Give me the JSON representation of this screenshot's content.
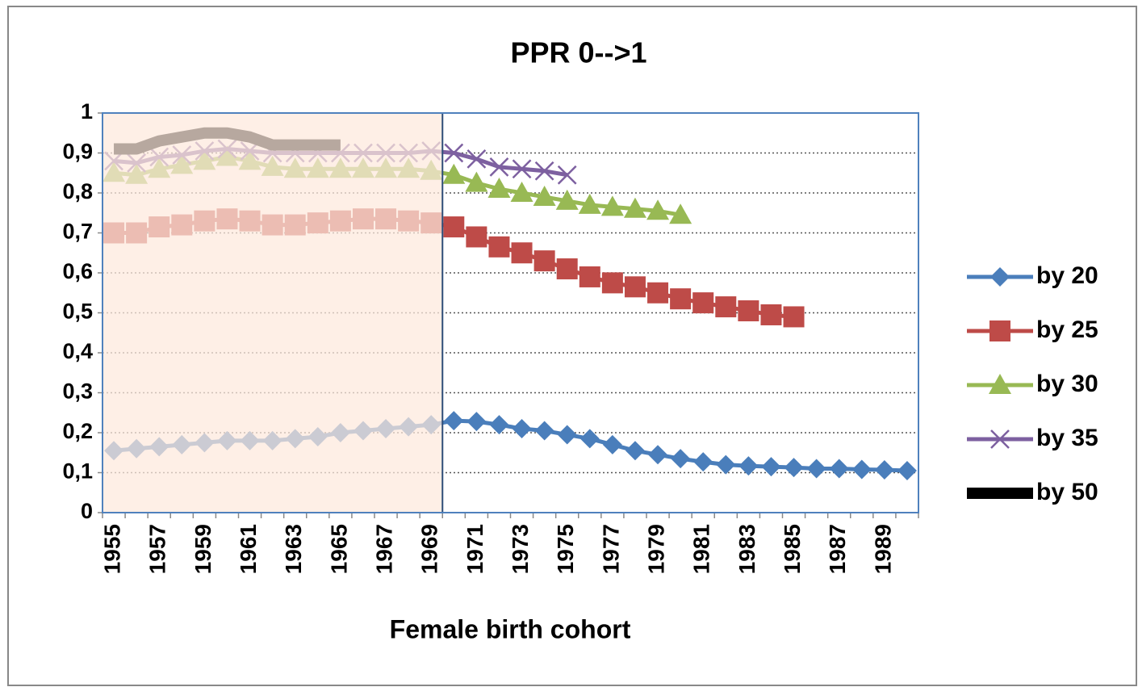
{
  "chart_data": {
    "type": "line",
    "title": "PPR 0-->1",
    "x_label": "Female birth cohort",
    "categories": [
      "1955",
      null,
      "1957",
      null,
      "1959",
      null,
      "1961",
      null,
      "1963",
      null,
      "1965",
      null,
      "1967",
      null,
      "1969",
      null,
      "1971",
      null,
      "1973",
      null,
      "1975",
      null,
      "1977",
      null,
      "1979",
      null,
      "1981",
      null,
      "1983",
      null,
      "1985",
      null,
      "1987",
      null,
      "1989",
      null
    ],
    "ylim": [
      0,
      1
    ],
    "yticks": [
      0,
      {
        "value": 0.1,
        "label": "0,1"
      },
      {
        "value": 0.2,
        "label": "0,2"
      },
      {
        "value": 0.3,
        "label": "0,3"
      },
      {
        "value": 0.4,
        "label": "0,4"
      },
      {
        "value": 0.5,
        "label": "0,5"
      },
      {
        "value": 0.6,
        "label": "0,6"
      },
      {
        "value": 0.7,
        "label": "0,7"
      },
      {
        "value": 0.8,
        "label": "0,8"
      },
      {
        "value": 0.9,
        "label": "0,9"
      },
      1
    ],
    "grid": true,
    "legend": "right",
    "series": [
      {
        "name": "by 20",
        "color": "#4a7ebb",
        "marker": "diamond",
        "values": [
          0.155,
          0.16,
          0.165,
          0.17,
          0.175,
          0.18,
          0.18,
          0.18,
          0.185,
          0.19,
          0.2,
          0.205,
          0.21,
          0.215,
          0.22,
          0.23,
          0.228,
          0.22,
          0.21,
          0.205,
          0.195,
          0.185,
          0.17,
          0.155,
          0.145,
          0.135,
          0.127,
          0.12,
          0.117,
          0.115,
          0.113,
          0.11,
          0.11,
          0.108,
          0.107,
          0.105
        ]
      },
      {
        "name": "by 25",
        "color": "#be4b48",
        "marker": "square",
        "values": [
          0.7,
          0.7,
          0.715,
          0.72,
          0.73,
          0.735,
          0.73,
          0.72,
          0.72,
          0.725,
          0.73,
          0.735,
          0.735,
          0.73,
          0.725,
          0.715,
          0.69,
          0.665,
          0.65,
          0.63,
          0.61,
          0.59,
          0.575,
          0.565,
          0.55,
          0.535,
          0.525,
          0.515,
          0.505,
          0.495,
          0.49,
          null,
          null,
          null,
          null,
          null
        ]
      },
      {
        "name": "by 30",
        "color": "#98b954",
        "marker": "triangle",
        "values": [
          0.85,
          0.845,
          0.86,
          0.87,
          0.88,
          0.89,
          0.88,
          0.865,
          0.86,
          0.86,
          0.86,
          0.86,
          0.86,
          0.86,
          0.855,
          0.845,
          0.825,
          0.81,
          0.8,
          0.79,
          0.78,
          0.77,
          0.765,
          0.76,
          0.755,
          0.745,
          null,
          null,
          null,
          null,
          null,
          null,
          null,
          null,
          null,
          null
        ]
      },
      {
        "name": "by 35",
        "color": "#7d60a0",
        "marker": "x",
        "values": [
          0.88,
          0.875,
          0.89,
          0.895,
          0.905,
          0.91,
          0.905,
          0.9,
          0.9,
          0.9,
          0.9,
          0.9,
          0.9,
          0.9,
          0.905,
          0.9,
          0.885,
          0.865,
          0.86,
          0.855,
          0.845,
          null,
          null,
          null,
          null,
          null,
          null,
          null,
          null,
          null,
          null,
          null,
          null,
          null,
          null,
          null
        ]
      },
      {
        "name": "by 50",
        "color": "#000000",
        "marker": "none",
        "values": [
          0.91,
          0.91,
          0.93,
          0.94,
          0.95,
          0.95,
          0.94,
          0.92,
          0.92,
          0.92,
          0.92,
          null,
          null,
          null,
          null,
          null,
          null,
          null,
          null,
          null,
          null,
          null,
          null,
          null,
          null,
          null,
          null,
          null,
          null,
          null,
          null,
          null,
          null,
          null,
          null,
          null
        ]
      }
    ]
  }
}
